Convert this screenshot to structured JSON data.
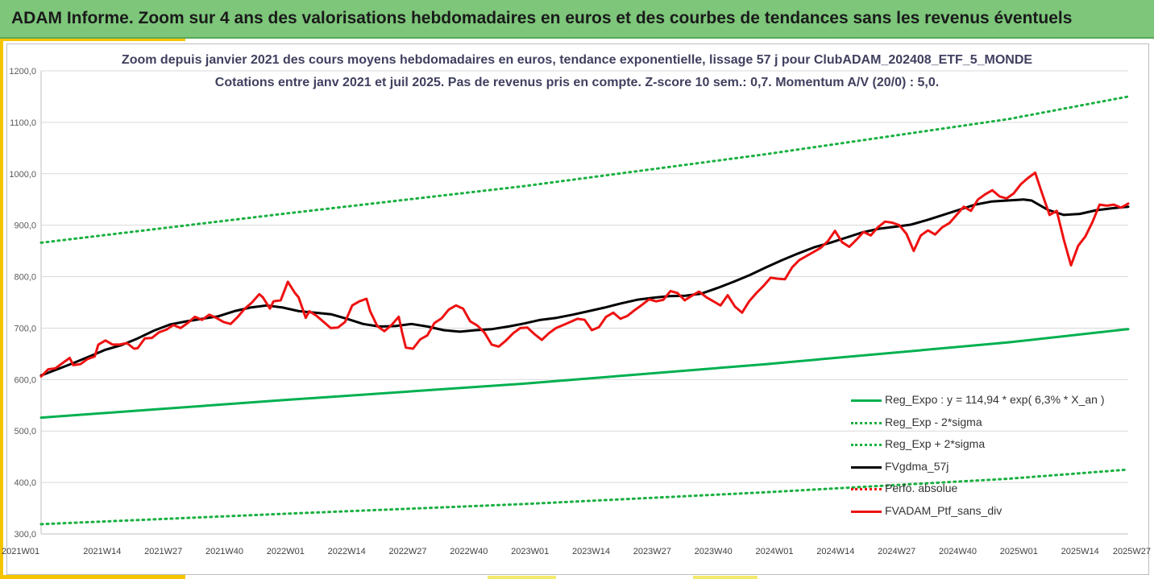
{
  "banner": {
    "title": "ADAM Informe. Zoom sur 4 ans des valorisations hebdomadaires en euros et des courbes de tendances sans les revenus éventuels"
  },
  "colors": {
    "banner_bg": "#7dc67a",
    "accent": "#f5c400",
    "reg_green": "#00b050",
    "dotted_green": "#18b040",
    "fvgdma": "#000000",
    "ptf_red": "#ee1111"
  },
  "chart_data": {
    "type": "line",
    "title": "Zoom depuis janvier 2021 des cours moyens hebdomadaires en euros, tendance exponentielle, lissage 57 j pour ClubADAM_202408_ETF_5_MONDE",
    "subtitle": "Cotations entre janv 2021 et juil 2025. Pas de revenus pris en compte. Z-score 10 sem.: 0,7. Momentum A/V (20/0) : 5,0.",
    "xlabel": "",
    "ylabel": "",
    "ylim": [
      300,
      1200
    ],
    "x_range_weeks": [
      0,
      234
    ],
    "y_ticks": [
      "300,0",
      "400,0",
      "500,0",
      "600,0",
      "700,0",
      "800,0",
      "900,0",
      "1000,0",
      "1100,0",
      "1200,0"
    ],
    "x_ticks": [
      "2021W01",
      "2021W14",
      "2021W27",
      "2021W40",
      "2022W01",
      "2022W14",
      "2022W27",
      "2022W40",
      "2023W01",
      "2023W14",
      "2023W27",
      "2023W40",
      "2024W01",
      "2024W14",
      "2024W27",
      "2024W40",
      "2025W01",
      "2025W14",
      "2025W27"
    ],
    "grid": "horizontal",
    "legend_position": "bottom-right",
    "series": [
      {
        "name": "Reg_Expo : y = 114,94 * exp( 6,3% *  X_an )",
        "style": "solid",
        "points": [
          [
            0,
            526
          ],
          [
            52,
            560
          ],
          [
            104,
            592
          ],
          [
            156,
            630
          ],
          [
            208,
            672
          ],
          [
            234,
            698
          ]
        ]
      },
      {
        "name": "Reg_Exp - 2*sigma",
        "style": "dotted",
        "points": [
          [
            0,
            319
          ],
          [
            52,
            339
          ],
          [
            104,
            358
          ],
          [
            156,
            381
          ],
          [
            208,
            407
          ],
          [
            234,
            425
          ]
        ]
      },
      {
        "name": "Reg_Exp + 2*sigma",
        "style": "dotted",
        "points": [
          [
            0,
            866
          ],
          [
            52,
            922
          ],
          [
            104,
            976
          ],
          [
            156,
            1038
          ],
          [
            208,
            1106
          ],
          [
            234,
            1150
          ]
        ]
      },
      {
        "name": "FVgdma_57j",
        "style": "solid",
        "points": [
          [
            0,
            608
          ],
          [
            4,
            620
          ],
          [
            8,
            632
          ],
          [
            12,
            645
          ],
          [
            16,
            658
          ],
          [
            20,
            667
          ],
          [
            24,
            680
          ],
          [
            28,
            695
          ],
          [
            32,
            707
          ],
          [
            36,
            713
          ],
          [
            40,
            718
          ],
          [
            44,
            723
          ],
          [
            48,
            733
          ],
          [
            52,
            740
          ],
          [
            56,
            744
          ],
          [
            60,
            740
          ],
          [
            64,
            733
          ],
          [
            68,
            730
          ],
          [
            72,
            727
          ],
          [
            76,
            718
          ],
          [
            80,
            708
          ],
          [
            84,
            703
          ],
          [
            88,
            704
          ],
          [
            92,
            708
          ],
          [
            96,
            703
          ],
          [
            100,
            696
          ],
          [
            104,
            693
          ],
          [
            108,
            696
          ],
          [
            112,
            698
          ],
          [
            116,
            703
          ],
          [
            120,
            709
          ],
          [
            124,
            716
          ],
          [
            128,
            720
          ],
          [
            132,
            726
          ],
          [
            136,
            733
          ],
          [
            140,
            740
          ],
          [
            144,
            748
          ],
          [
            148,
            755
          ],
          [
            152,
            759
          ],
          [
            156,
            762
          ],
          [
            160,
            763
          ],
          [
            164,
            767
          ],
          [
            168,
            778
          ],
          [
            172,
            790
          ],
          [
            176,
            803
          ],
          [
            180,
            818
          ],
          [
            184,
            832
          ],
          [
            188,
            845
          ],
          [
            192,
            857
          ],
          [
            196,
            866
          ],
          [
            200,
            876
          ],
          [
            204,
            886
          ],
          [
            208,
            893
          ],
          [
            212,
            897
          ],
          [
            216,
            901
          ],
          [
            220,
            910
          ],
          [
            224,
            920
          ],
          [
            228,
            930
          ],
          [
            232,
            940
          ],
          [
            236,
            946
          ],
          [
            240,
            948
          ],
          [
            244,
            950
          ],
          [
            246,
            948
          ],
          [
            250,
            930
          ],
          [
            254,
            920
          ],
          [
            258,
            922
          ],
          [
            262,
            929
          ],
          [
            266,
            933
          ],
          [
            270,
            936
          ]
        ]
      },
      {
        "name": "Perfo. absolue",
        "style": "dotted",
        "points": []
      },
      {
        "name": "FVADAM_Ptf_sans_div",
        "style": "solid",
        "points": [
          [
            0,
            606
          ],
          [
            2,
            620
          ],
          [
            4,
            622
          ],
          [
            6,
            632
          ],
          [
            8,
            642
          ],
          [
            9,
            628
          ],
          [
            11,
            630
          ],
          [
            13,
            640
          ],
          [
            15,
            645
          ],
          [
            16,
            668
          ],
          [
            18,
            676
          ],
          [
            20,
            668
          ],
          [
            22,
            668
          ],
          [
            24,
            671
          ],
          [
            26,
            660
          ],
          [
            27,
            661
          ],
          [
            29,
            680
          ],
          [
            31,
            681
          ],
          [
            33,
            692
          ],
          [
            35,
            697
          ],
          [
            37,
            706
          ],
          [
            39,
            700
          ],
          [
            41,
            710
          ],
          [
            43,
            722
          ],
          [
            45,
            716
          ],
          [
            47,
            726
          ],
          [
            49,
            720
          ],
          [
            51,
            712
          ],
          [
            53,
            708
          ],
          [
            55,
            722
          ],
          [
            57,
            738
          ],
          [
            59,
            750
          ],
          [
            61,
            766
          ],
          [
            62,
            760
          ],
          [
            64,
            738
          ],
          [
            65,
            752
          ],
          [
            67,
            754
          ],
          [
            69,
            790
          ],
          [
            71,
            768
          ],
          [
            72,
            760
          ],
          [
            74,
            720
          ],
          [
            75,
            733
          ],
          [
            77,
            724
          ],
          [
            79,
            712
          ],
          [
            81,
            700
          ],
          [
            83,
            701
          ],
          [
            85,
            712
          ],
          [
            87,
            744
          ],
          [
            89,
            752
          ],
          [
            91,
            757
          ],
          [
            92,
            733
          ],
          [
            94,
            704
          ],
          [
            96,
            694
          ],
          [
            98,
            706
          ],
          [
            100,
            722
          ],
          [
            101,
            690
          ],
          [
            102,
            662
          ],
          [
            104,
            660
          ],
          [
            106,
            678
          ],
          [
            108,
            686
          ],
          [
            110,
            710
          ],
          [
            112,
            719
          ],
          [
            114,
            736
          ],
          [
            116,
            744
          ],
          [
            118,
            738
          ],
          [
            120,
            713
          ],
          [
            122,
            705
          ],
          [
            124,
            691
          ],
          [
            126,
            668
          ],
          [
            128,
            664
          ],
          [
            130,
            676
          ],
          [
            132,
            690
          ],
          [
            134,
            700
          ],
          [
            136,
            701
          ],
          [
            138,
            688
          ],
          [
            140,
            677
          ],
          [
            142,
            690
          ],
          [
            144,
            700
          ],
          [
            146,
            706
          ],
          [
            148,
            712
          ],
          [
            150,
            718
          ],
          [
            152,
            716
          ],
          [
            154,
            696
          ],
          [
            156,
            702
          ],
          [
            158,
            722
          ],
          [
            160,
            730
          ],
          [
            162,
            718
          ],
          [
            164,
            724
          ],
          [
            166,
            735
          ],
          [
            168,
            745
          ],
          [
            170,
            756
          ],
          [
            172,
            752
          ],
          [
            174,
            755
          ],
          [
            176,
            772
          ],
          [
            178,
            768
          ],
          [
            180,
            754
          ],
          [
            182,
            763
          ],
          [
            184,
            771
          ],
          [
            186,
            760
          ],
          [
            188,
            752
          ],
          [
            190,
            744
          ],
          [
            192,
            764
          ],
          [
            194,
            742
          ],
          [
            196,
            730
          ],
          [
            198,
            752
          ],
          [
            200,
            768
          ],
          [
            202,
            782
          ],
          [
            204,
            798
          ],
          [
            206,
            796
          ],
          [
            208,
            795
          ],
          [
            210,
            818
          ],
          [
            212,
            832
          ],
          [
            214,
            840
          ],
          [
            216,
            848
          ],
          [
            218,
            856
          ],
          [
            220,
            869
          ],
          [
            222,
            889
          ],
          [
            224,
            867
          ],
          [
            226,
            858
          ],
          [
            228,
            872
          ],
          [
            230,
            887
          ],
          [
            232,
            880
          ],
          [
            234,
            896
          ],
          [
            236,
            907
          ],
          [
            238,
            905
          ],
          [
            240,
            900
          ],
          [
            242,
            883
          ],
          [
            244,
            850
          ],
          [
            246,
            880
          ],
          [
            248,
            890
          ],
          [
            250,
            882
          ],
          [
            252,
            896
          ],
          [
            254,
            904
          ],
          [
            256,
            920
          ],
          [
            258,
            936
          ],
          [
            260,
            928
          ],
          [
            262,
            950
          ],
          [
            264,
            960
          ],
          [
            266,
            968
          ],
          [
            268,
            956
          ],
          [
            270,
            952
          ],
          [
            272,
            962
          ],
          [
            274,
            980
          ],
          [
            276,
            992
          ],
          [
            278,
            1002
          ],
          [
            280,
            960
          ],
          [
            282,
            920
          ],
          [
            284,
            928
          ],
          [
            286,
            872
          ],
          [
            288,
            822
          ],
          [
            290,
            860
          ],
          [
            292,
            878
          ],
          [
            294,
            906
          ],
          [
            296,
            940
          ],
          [
            298,
            938
          ],
          [
            300,
            940
          ],
          [
            302,
            934
          ],
          [
            304,
            942
          ]
        ]
      }
    ]
  }
}
